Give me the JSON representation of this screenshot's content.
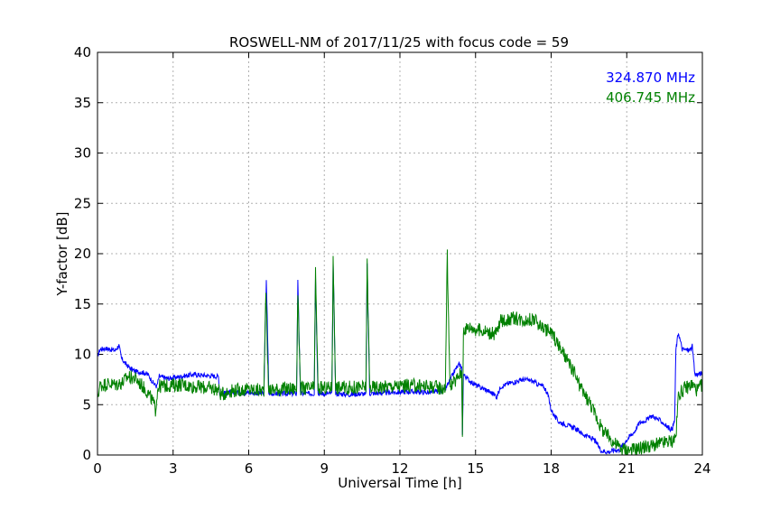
{
  "chart_data": {
    "type": "line",
    "title": "ROSWELL-NM of 2017/11/25 with focus code = 59",
    "xlabel": "Universal Time [h]",
    "ylabel": "Y-factor [dB]",
    "xlim": [
      0,
      24
    ],
    "ylim": [
      0,
      40
    ],
    "x_ticks": [
      "0",
      "3",
      "6",
      "9",
      "12",
      "15",
      "18",
      "21",
      "24"
    ],
    "y_ticks": [
      "0",
      "5",
      "10",
      "15",
      "20",
      "25",
      "30",
      "35",
      "40"
    ],
    "grid": true,
    "legend_position": "top-right",
    "series": [
      {
        "name": "324.870 MHz",
        "color": "#0000ff",
        "points": [
          [
            0,
            9.8
          ],
          [
            0.1,
            10.5
          ],
          [
            0.3,
            10.6
          ],
          [
            0.5,
            10.5
          ],
          [
            0.7,
            10.4
          ],
          [
            0.85,
            10.9
          ],
          [
            0.95,
            9.6
          ],
          [
            1.1,
            9.1
          ],
          [
            1.3,
            8.6
          ],
          [
            1.5,
            8.3
          ],
          [
            1.8,
            8.2
          ],
          [
            2.0,
            8.0
          ],
          [
            2.2,
            7.2
          ],
          [
            2.35,
            6.8
          ],
          [
            2.45,
            7.8
          ],
          [
            2.8,
            7.6
          ],
          [
            3.3,
            7.8
          ],
          [
            3.8,
            8.0
          ],
          [
            4.3,
            7.9
          ],
          [
            4.8,
            7.8
          ],
          [
            4.85,
            6.1
          ],
          [
            5.3,
            6.2
          ],
          [
            6.0,
            6.2
          ],
          [
            6.6,
            6.1
          ],
          [
            6.7,
            17.5
          ],
          [
            6.8,
            6.1
          ],
          [
            7.9,
            6.1
          ],
          [
            7.95,
            17.5
          ],
          [
            8.05,
            6.1
          ],
          [
            8.6,
            6.1
          ],
          [
            8.65,
            17.8
          ],
          [
            8.75,
            6.1
          ],
          [
            9.3,
            6.1
          ],
          [
            9.35,
            19.0
          ],
          [
            9.45,
            6.1
          ],
          [
            10.0,
            6.0
          ],
          [
            10.5,
            6.1
          ],
          [
            10.65,
            6.0
          ],
          [
            10.7,
            18.8
          ],
          [
            10.8,
            6.1
          ],
          [
            11.5,
            6.2
          ],
          [
            12.5,
            6.3
          ],
          [
            13.2,
            6.2
          ],
          [
            13.8,
            6.5
          ],
          [
            14.0,
            7.5
          ],
          [
            14.2,
            8.5
          ],
          [
            14.35,
            9.0
          ],
          [
            14.45,
            8.8
          ],
          [
            14.48,
            2.0
          ],
          [
            14.52,
            8.0
          ],
          [
            14.8,
            7.3
          ],
          [
            15.1,
            6.8
          ],
          [
            15.4,
            6.5
          ],
          [
            15.7,
            6.1
          ],
          [
            15.85,
            5.8
          ],
          [
            16.0,
            6.8
          ],
          [
            16.3,
            7.1
          ],
          [
            16.6,
            7.3
          ],
          [
            16.9,
            7.5
          ],
          [
            17.2,
            7.4
          ],
          [
            17.5,
            7.0
          ],
          [
            17.7,
            6.8
          ],
          [
            17.85,
            6.2
          ],
          [
            18.0,
            4.5
          ],
          [
            18.15,
            3.8
          ],
          [
            18.3,
            3.3
          ],
          [
            18.6,
            3.0
          ],
          [
            18.9,
            2.7
          ],
          [
            19.1,
            2.4
          ],
          [
            19.3,
            2.0
          ],
          [
            19.5,
            1.8
          ],
          [
            19.7,
            1.5
          ],
          [
            19.85,
            1.0
          ],
          [
            20.0,
            0.4
          ],
          [
            20.3,
            0.3
          ],
          [
            20.5,
            0.5
          ],
          [
            20.7,
            0.5
          ],
          [
            20.9,
            1.2
          ],
          [
            21.1,
            1.8
          ],
          [
            21.3,
            2.3
          ],
          [
            21.5,
            3.2
          ],
          [
            21.8,
            3.5
          ],
          [
            22.0,
            3.9
          ],
          [
            22.2,
            3.6
          ],
          [
            22.4,
            3.3
          ],
          [
            22.6,
            2.8
          ],
          [
            22.8,
            2.5
          ],
          [
            22.9,
            3.5
          ],
          [
            22.95,
            10.5
          ],
          [
            23.05,
            12.2
          ],
          [
            23.2,
            10.5
          ],
          [
            23.5,
            10.4
          ],
          [
            23.6,
            10.8
          ],
          [
            23.7,
            8.0
          ],
          [
            24.0,
            8.1
          ]
        ]
      },
      {
        "name": "406.745 MHz",
        "color": "#008000",
        "points": [
          [
            0,
            5.8
          ],
          [
            0.1,
            6.9
          ],
          [
            0.4,
            7.1
          ],
          [
            0.7,
            7.0
          ],
          [
            1.0,
            7.2
          ],
          [
            1.2,
            7.8
          ],
          [
            1.5,
            7.6
          ],
          [
            1.8,
            6.8
          ],
          [
            2.0,
            6.2
          ],
          [
            2.2,
            5.3
          ],
          [
            2.3,
            4.5
          ],
          [
            2.4,
            6.8
          ],
          [
            2.8,
            6.9
          ],
          [
            3.3,
            7.0
          ],
          [
            3.8,
            6.8
          ],
          [
            4.3,
            6.7
          ],
          [
            4.8,
            6.5
          ],
          [
            4.9,
            6.0
          ],
          [
            5.3,
            6.4
          ],
          [
            6.0,
            6.5
          ],
          [
            6.6,
            6.4
          ],
          [
            6.68,
            16.8
          ],
          [
            6.78,
            6.5
          ],
          [
            7.9,
            6.6
          ],
          [
            7.95,
            16.5
          ],
          [
            8.05,
            6.6
          ],
          [
            8.6,
            6.6
          ],
          [
            8.65,
            18.2
          ],
          [
            8.75,
            6.6
          ],
          [
            9.3,
            6.7
          ],
          [
            9.35,
            19.3
          ],
          [
            9.45,
            6.7
          ],
          [
            10.0,
            6.7
          ],
          [
            10.65,
            6.7
          ],
          [
            10.7,
            19.0
          ],
          [
            10.8,
            6.7
          ],
          [
            11.5,
            6.8
          ],
          [
            12.5,
            6.9
          ],
          [
            13.3,
            6.8
          ],
          [
            13.8,
            6.6
          ],
          [
            13.88,
            20.0
          ],
          [
            13.98,
            7.0
          ],
          [
            14.2,
            7.3
          ],
          [
            14.35,
            8.0
          ],
          [
            14.45,
            8.2
          ],
          [
            14.48,
            1.8
          ],
          [
            14.52,
            12.5
          ],
          [
            14.8,
            12.7
          ],
          [
            15.1,
            12.4
          ],
          [
            15.4,
            12.3
          ],
          [
            15.7,
            12.0
          ],
          [
            15.85,
            12.2
          ],
          [
            16.0,
            13.3
          ],
          [
            16.5,
            13.6
          ],
          [
            17.0,
            13.4
          ],
          [
            17.3,
            13.5
          ],
          [
            17.6,
            12.8
          ],
          [
            17.9,
            12.3
          ],
          [
            18.1,
            11.9
          ],
          [
            18.3,
            10.8
          ],
          [
            18.5,
            10.0
          ],
          [
            18.7,
            9.0
          ],
          [
            18.9,
            8.3
          ],
          [
            19.1,
            7.0
          ],
          [
            19.3,
            6.1
          ],
          [
            19.5,
            5.4
          ],
          [
            19.7,
            4.3
          ],
          [
            19.9,
            3.2
          ],
          [
            20.1,
            2.2
          ],
          [
            20.3,
            1.8
          ],
          [
            20.5,
            1.2
          ],
          [
            20.8,
            0.6
          ],
          [
            21.1,
            0.5
          ],
          [
            21.4,
            0.6
          ],
          [
            21.7,
            0.8
          ],
          [
            22.0,
            0.9
          ],
          [
            22.3,
            1.1
          ],
          [
            22.6,
            1.3
          ],
          [
            22.8,
            1.4
          ],
          [
            22.95,
            1.8
          ],
          [
            23.05,
            6.0
          ],
          [
            23.3,
            6.6
          ],
          [
            23.6,
            7.0
          ],
          [
            23.8,
            6.4
          ],
          [
            24.0,
            7.0
          ]
        ]
      }
    ]
  }
}
